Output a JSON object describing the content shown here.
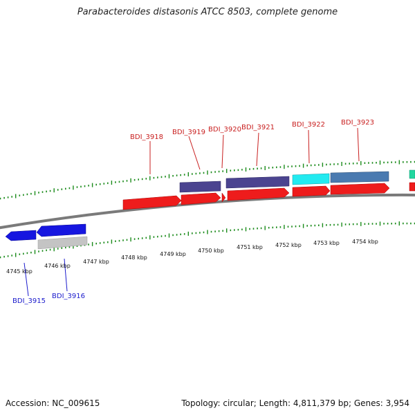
{
  "title": "Parabacteroides distasonis ATCC 8503, complete genome",
  "footer": {
    "accession": "Accession: NC_009615",
    "topology": "Topology: circular; Length: 4,811,379 bp; Genes: 3,954"
  },
  "colors": {
    "background": "#ffffff",
    "backbone": "#7a7a7a",
    "tick": "#1a8a1a",
    "forward_gene": "#ee1c1c",
    "reverse_gene": "#1616e0",
    "gene_label_forward": "#c81e1e",
    "gene_label_reverse": "#1a1acc",
    "cog_purple": "#4b4490",
    "cog_cyan": "#22eaf0",
    "cog_steelblue": "#4a7ab0",
    "cog_teal": "#22d7a0",
    "cog_gray": "#c4c4c4"
  },
  "scale_labels": [
    "4745 kbp",
    "4746 kbp",
    "4747 kbp",
    "4748 kbp",
    "4749 kbp",
    "4750 kbp",
    "4751 kbp",
    "4752 kbp",
    "4753 kbp",
    "4754 kbp"
  ],
  "forward_gene_labels": [
    "BDI_3918",
    "BDI_3919",
    "BDI_3920",
    "BDI_3921",
    "BDI_3922",
    "BDI_3923"
  ],
  "reverse_gene_labels": [
    "BDI_3915",
    "BDI_3916"
  ]
}
